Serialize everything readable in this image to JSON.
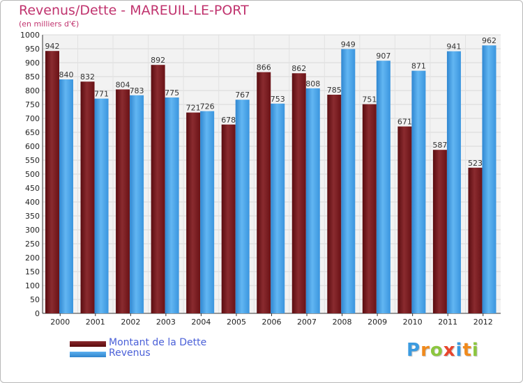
{
  "chart_data": {
    "type": "bar",
    "title": "Revenus/Dette - MAREUIL-LE-PORT",
    "subtitle": "(en milliers d'€)",
    "categories": [
      "2000",
      "2001",
      "2002",
      "2003",
      "2004",
      "2005",
      "2006",
      "2007",
      "2008",
      "2009",
      "2010",
      "2011",
      "2012"
    ],
    "series": [
      {
        "name": "Montant de la Dette",
        "color": "#7a1418",
        "values": [
          942,
          832,
          804,
          892,
          721,
          678,
          866,
          862,
          785,
          751,
          671,
          587,
          523
        ]
      },
      {
        "name": "Revenus",
        "color": "#3f9be6",
        "values": [
          840,
          771,
          783,
          775,
          726,
          767,
          753,
          808,
          949,
          907,
          871,
          941,
          962
        ]
      }
    ],
    "ylim": [
      0,
      1000
    ],
    "ytick_step": 50,
    "grid": true,
    "legend_position": "bottom-left"
  },
  "branding": {
    "logo_letters": [
      "P",
      "r",
      "o",
      "x",
      "i",
      "t",
      "i"
    ],
    "logo_colors": [
      "#3b9be0",
      "#f08a1c",
      "#8cc63f",
      "#e8452c",
      "#3b9be0",
      "#f08a1c",
      "#8cc63f"
    ]
  }
}
